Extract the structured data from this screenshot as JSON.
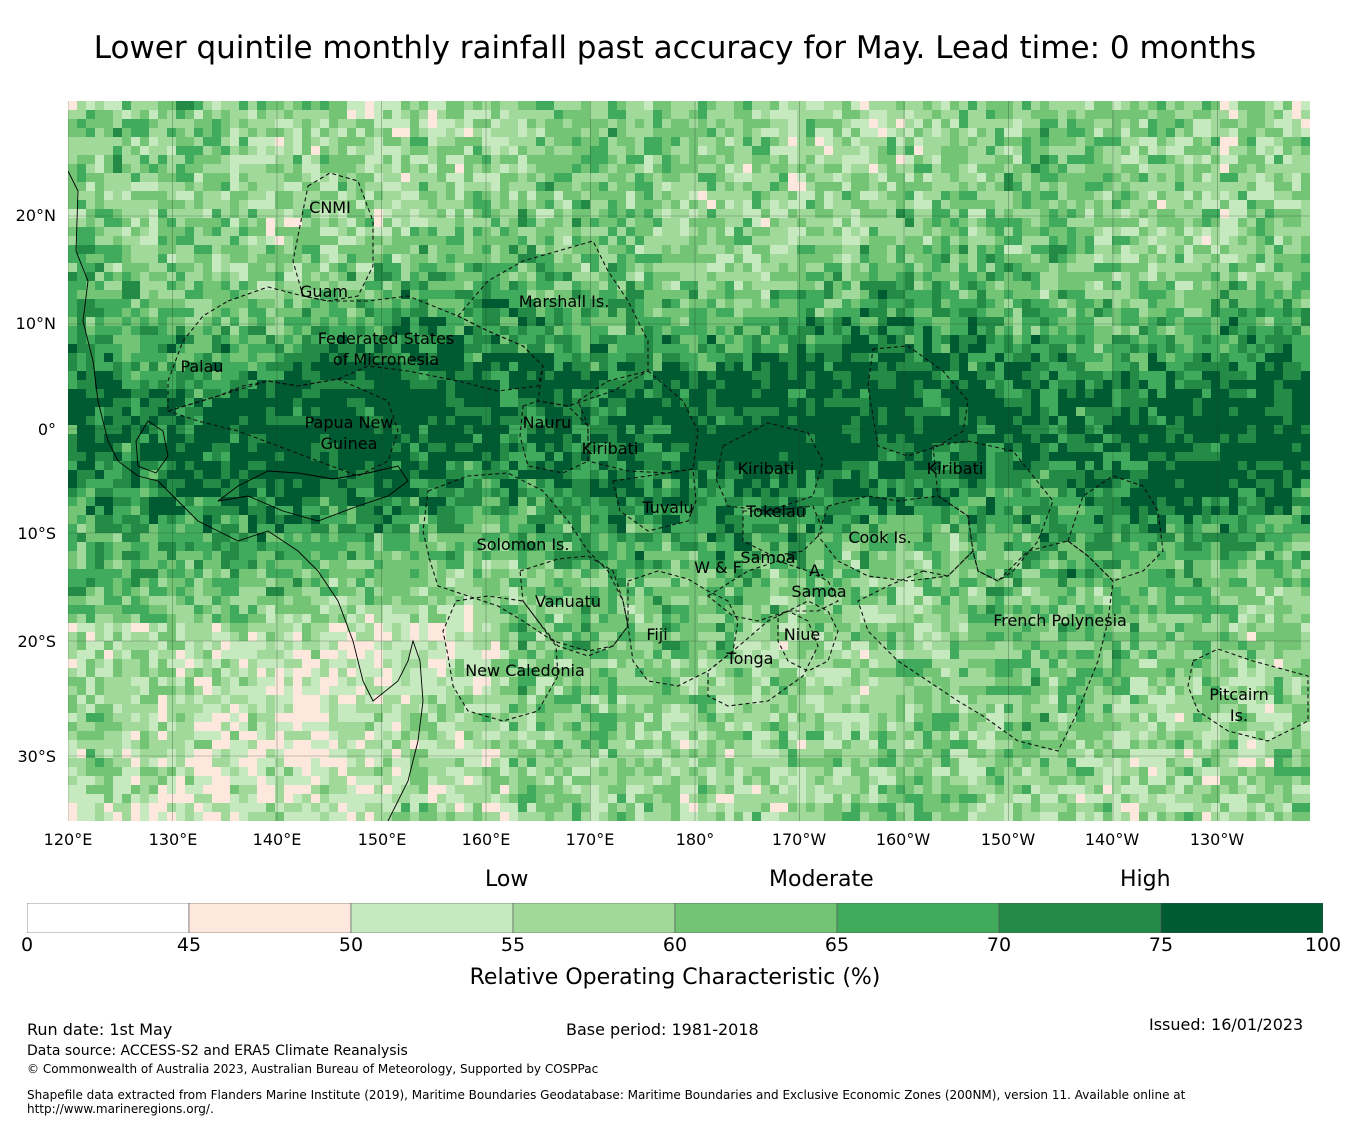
{
  "title": "Lower quintile monthly rainfall past accuracy for May. Lead time: 0 months",
  "map": {
    "lat_labels": [
      "20°N",
      "10°N",
      "0°",
      "10°S",
      "20°S",
      "30°S"
    ],
    "lon_labels": [
      "120°E",
      "130°E",
      "140°E",
      "150°E",
      "160°E",
      "170°E",
      "180°",
      "170°W",
      "160°W",
      "150°W",
      "140°W",
      "130°W"
    ],
    "regions": [
      "CNMI",
      "Guam",
      "Marshall Is.",
      "Federated States",
      "of Micronesia",
      "Palau",
      "Papua New",
      "Guinea",
      "Nauru",
      "Kiribati",
      "Kiribati",
      "Kiribati",
      "Tuvalu",
      "Tokelau",
      "Cook Is.",
      "Solomon Is.",
      "Samoa",
      "W & F",
      "A.",
      "Samoa",
      "Vanuatu",
      "Fiji",
      "Niue",
      "Tonga",
      "French Polynesia",
      "New Caledonia",
      "Pitcairn",
      "Is."
    ]
  },
  "legend": {
    "categories": [
      "Low",
      "Moderate",
      "High"
    ],
    "bins": [
      {
        "from": 0,
        "to": 45,
        "color": "#ffffff"
      },
      {
        "from": 45,
        "to": 50,
        "color": "#fee8dd"
      },
      {
        "from": 50,
        "to": 55,
        "color": "#c7e9c0"
      },
      {
        "from": 55,
        "to": 60,
        "color": "#a1d99b"
      },
      {
        "from": 60,
        "to": 65,
        "color": "#74c476"
      },
      {
        "from": 65,
        "to": 70,
        "color": "#41ab5d"
      },
      {
        "from": 70,
        "to": 75,
        "color": "#238b45"
      },
      {
        "from": 75,
        "to": 100,
        "color": "#005a32"
      }
    ],
    "ticks": [
      "0",
      "45",
      "50",
      "55",
      "60",
      "65",
      "70",
      "75",
      "100"
    ],
    "title": "Relative Operating Characteristic (%)"
  },
  "footer": {
    "run_date": "Run date: 1st May",
    "base_period": "Base period: 1981-2018",
    "issued": "Issued: 16/01/2023",
    "data_source": "Data source: ACCESS-S2 and ERA5 Climate Reanalysis",
    "copyright": "© Commonwealth of Australia 2023, Australian Bureau of Meteorology, Supported by COSPPac",
    "shapefile_line1": "Shapefile data extracted from Flanders Marine Institute (2019), Maritime Boundaries Geodatabase: Maritime Boundaries and Exclusive Economic Zones (200NM), version 11. Available online at",
    "shapefile_line2": "http://www.marineregions.org/."
  }
}
